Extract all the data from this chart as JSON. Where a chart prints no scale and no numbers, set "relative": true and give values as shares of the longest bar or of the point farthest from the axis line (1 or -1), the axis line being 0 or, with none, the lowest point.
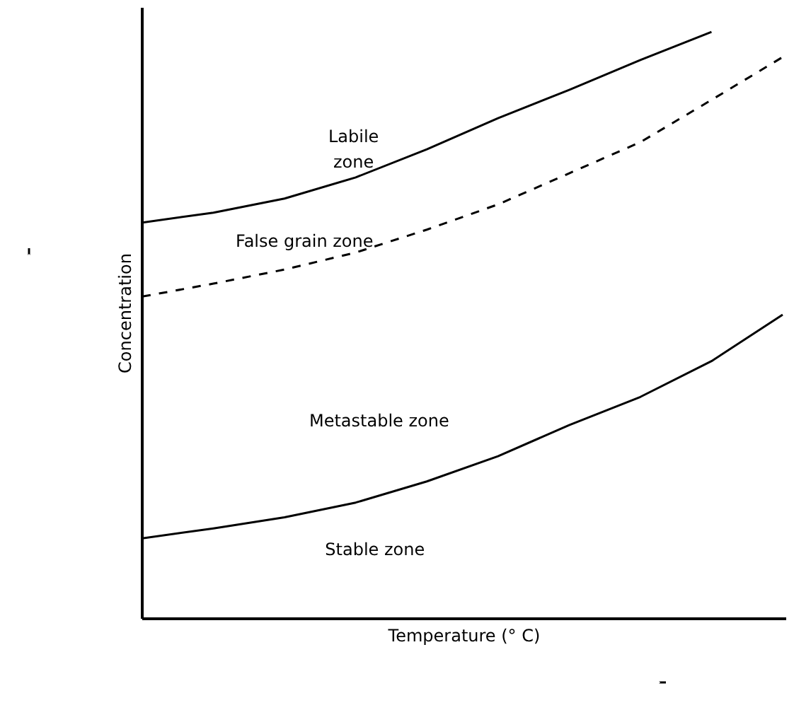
{
  "chart_data": {
    "type": "line",
    "relative": true,
    "xlabel": "Temperature (° C)",
    "ylabel": "Concentration",
    "categories": [
      null,
      null,
      null,
      null,
      null,
      null,
      null,
      null,
      null,
      null
    ],
    "series": [
      {
        "color": "#000000",
        "line_style": "solid",
        "values": [
          0.675,
          0.692,
          0.716,
          0.752,
          0.8,
          0.853,
          0.901,
          0.952,
          1.0,
          null
        ]
      },
      {
        "color": "#000000",
        "line_style": "dashed",
        "values": [
          0.549,
          0.571,
          0.595,
          0.624,
          0.663,
          0.706,
          0.759,
          0.812,
          0.884,
          0.957
        ]
      },
      {
        "color": "#000000",
        "line_style": "solid",
        "values": [
          0.137,
          0.154,
          0.173,
          0.198,
          0.234,
          0.277,
          0.33,
          0.378,
          0.439,
          0.518
        ]
      }
    ],
    "annotations": [
      "Labile zone",
      "False grain zone",
      "Metastable zone",
      "Stable zone"
    ],
    "marker": "none"
  }
}
